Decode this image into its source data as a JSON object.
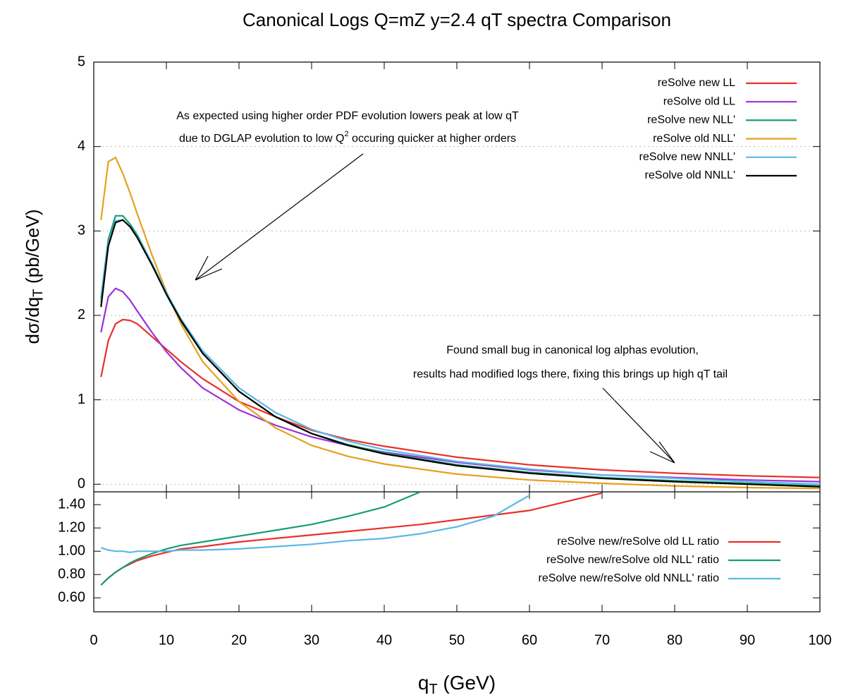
{
  "chart_data": [
    {
      "type": "line",
      "title": "Canonical Logs Q=mZ y=2.4 qT spectra Comparison",
      "ylabel": [
        "dσ/dq",
        "T",
        " (pb/GeV)"
      ],
      "annotations": [
        [
          "As expected using higher order PDF evolution lowers peak at low qT"
        ],
        [
          "due to DGLAP evolution to low Q",
          "2",
          " occuring quicker at higher orders"
        ],
        [
          "Found small bug in canonical log alphas evolution,"
        ],
        [
          "results had modified logs there, fixing this brings up high qT tail"
        ]
      ],
      "x": [
        1,
        2,
        3,
        4,
        5,
        6,
        8,
        10,
        12,
        15,
        20,
        25,
        30,
        35,
        40,
        50,
        60,
        70,
        80,
        90,
        100
      ],
      "xlim": [
        0,
        100
      ],
      "ylim": [
        -0.09,
        5
      ],
      "yticks": [
        0,
        1,
        2,
        3,
        4,
        5
      ],
      "grid": true,
      "legend": "top-right",
      "series": [
        {
          "name": "reSolve new LL",
          "color": "#e8302a",
          "values": [
            1.27,
            1.7,
            1.9,
            1.95,
            1.94,
            1.9,
            1.75,
            1.6,
            1.45,
            1.25,
            0.98,
            0.8,
            0.64,
            0.53,
            0.45,
            0.32,
            0.23,
            0.17,
            0.13,
            0.1,
            0.08
          ]
        },
        {
          "name": "reSolve old LL",
          "color": "#9b30d9",
          "values": [
            1.8,
            2.22,
            2.32,
            2.28,
            2.18,
            2.05,
            1.8,
            1.57,
            1.38,
            1.14,
            0.88,
            0.7,
            0.56,
            0.46,
            0.38,
            0.26,
            0.17,
            0.11,
            0.08,
            0.05,
            0.03
          ]
        },
        {
          "name": "reSolve new NLL'",
          "color": "#159e74",
          "values": [
            2.2,
            2.9,
            3.18,
            3.18,
            3.08,
            2.95,
            2.62,
            2.25,
            1.93,
            1.55,
            1.1,
            0.8,
            0.6,
            0.47,
            0.37,
            0.23,
            0.14,
            0.08,
            0.04,
            0.01,
            -0.02
          ]
        },
        {
          "name": "reSolve old NLL'",
          "color": "#e6a11c",
          "values": [
            3.13,
            3.82,
            3.87,
            3.68,
            3.45,
            3.2,
            2.72,
            2.28,
            1.9,
            1.45,
            0.98,
            0.67,
            0.46,
            0.33,
            0.24,
            0.12,
            0.05,
            0.01,
            -0.02,
            -0.04,
            -0.05
          ]
        },
        {
          "name": "reSolve new NNLL'",
          "color": "#5bb8e8",
          "values": [
            2.15,
            2.85,
            3.12,
            3.13,
            3.05,
            2.93,
            2.62,
            2.27,
            1.96,
            1.58,
            1.14,
            0.85,
            0.65,
            0.51,
            0.41,
            0.27,
            0.18,
            0.11,
            0.07,
            0.03,
            0.0
          ]
        },
        {
          "name": "reSolve old NNLL'",
          "color": "#000000",
          "values": [
            2.1,
            2.82,
            3.1,
            3.13,
            3.05,
            2.92,
            2.6,
            2.25,
            1.94,
            1.55,
            1.1,
            0.8,
            0.6,
            0.46,
            0.36,
            0.22,
            0.13,
            0.07,
            0.03,
            0.0,
            -0.03
          ]
        }
      ]
    },
    {
      "type": "line",
      "xlabel": [
        "q",
        "T",
        " (GeV)"
      ],
      "x": [
        1,
        2,
        3,
        4,
        5,
        6,
        8,
        10,
        12,
        15,
        20,
        25,
        30,
        35,
        40,
        45,
        50,
        55,
        60,
        70
      ],
      "xlim": [
        0,
        100
      ],
      "xticks": [
        0,
        10,
        20,
        30,
        40,
        50,
        60,
        70,
        80,
        90,
        100
      ],
      "ylim": [
        0.48,
        1.51
      ],
      "yticks": [
        {
          "value": 0.6,
          "label": "0.60"
        },
        {
          "value": 0.8,
          "label": "0.80"
        },
        {
          "value": 1.0,
          "label": "1.00"
        },
        {
          "value": 1.2,
          "label": "1.20"
        },
        {
          "value": 1.4,
          "label": "1.40"
        }
      ],
      "legend": "right",
      "series": [
        {
          "name": "reSolve new/reSolve old LL ratio",
          "color": "#e8302a",
          "values": [
            0.71,
            0.77,
            0.82,
            0.86,
            0.89,
            0.92,
            0.96,
            0.99,
            1.02,
            1.04,
            1.08,
            1.11,
            1.14,
            1.17,
            1.2,
            1.23,
            1.27,
            1.31,
            1.35,
            1.5
          ]
        },
        {
          "name": "reSolve new/reSolve old NLL' ratio",
          "color": "#159e74",
          "values": [
            0.71,
            0.77,
            0.82,
            0.86,
            0.9,
            0.93,
            0.98,
            1.02,
            1.05,
            1.08,
            1.13,
            1.18,
            1.23,
            1.3,
            1.38,
            1.51,
            null,
            null,
            null,
            null
          ]
        },
        {
          "name": "reSolve new/reSolve old NNLL' ratio",
          "color": "#5bb8e8",
          "values": [
            1.03,
            1.01,
            1.0,
            1.0,
            0.99,
            1.0,
            1.0,
            1.0,
            1.01,
            1.01,
            1.02,
            1.04,
            1.06,
            1.09,
            1.11,
            1.15,
            1.21,
            1.3,
            1.48,
            null
          ]
        }
      ]
    }
  ]
}
